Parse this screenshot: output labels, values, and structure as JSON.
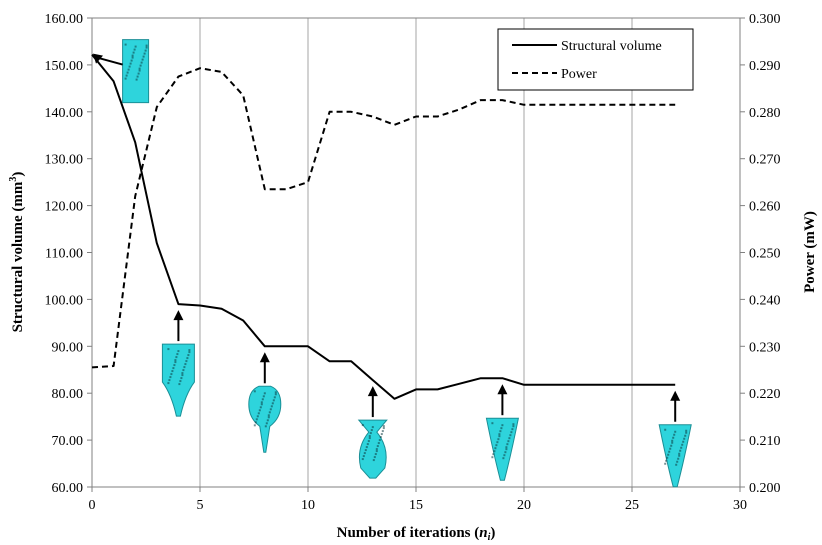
{
  "chart_data": {
    "type": "line",
    "x": [
      0,
      1,
      2,
      3,
      4,
      5,
      6,
      7,
      8,
      9,
      10,
      11,
      12,
      13,
      14,
      15,
      16,
      17,
      18,
      19,
      20,
      21,
      22,
      23,
      24,
      25,
      26,
      27
    ],
    "series": [
      {
        "name": "Structural volume",
        "axis": "left",
        "style": "solid",
        "values": [
          152.2,
          146.5,
          133.5,
          112.0,
          99.0,
          98.7,
          98.0,
          95.5,
          90.0,
          90.0,
          90.0,
          86.8,
          86.8,
          82.8,
          78.8,
          80.8,
          80.8,
          82.0,
          83.2,
          83.2,
          81.8,
          81.8,
          81.8,
          81.8,
          81.8,
          81.8,
          81.8,
          81.8
        ]
      },
      {
        "name": "Power",
        "axis": "right",
        "style": "dashed",
        "values": [
          0.2255,
          0.2258,
          0.262,
          0.281,
          0.2875,
          0.2893,
          0.2885,
          0.2835,
          0.2635,
          0.2635,
          0.265,
          0.28,
          0.28,
          0.279,
          0.2772,
          0.279,
          0.279,
          0.2805,
          0.2825,
          0.2825,
          0.2815,
          0.2815,
          0.2815,
          0.2815,
          0.2815,
          0.2815,
          0.2815,
          0.2815
        ]
      }
    ],
    "xlabel_main": "Number of iterations (",
    "xlabel_var": "n",
    "xlabel_sub": "i",
    "xlabel_close": ")",
    "ylabel_left": "Structural volume (mm",
    "ylabel_left_sup": "3",
    "ylabel_left_close": ")",
    "ylabel_right": "Power (mW)",
    "xlim": [
      0,
      30
    ],
    "ylim_left": [
      60,
      160
    ],
    "ylim_right": [
      0.2,
      0.3
    ],
    "xticks": [
      "0",
      "5",
      "10",
      "15",
      "20",
      "25",
      "30"
    ],
    "yticks_left": [
      "60.00",
      "70.00",
      "80.00",
      "90.00",
      "100.00",
      "110.00",
      "120.00",
      "130.00",
      "140.00",
      "150.00",
      "160.00"
    ],
    "yticks_right": [
      "0.200",
      "0.210",
      "0.220",
      "0.230",
      "0.240",
      "0.250",
      "0.260",
      "0.270",
      "0.280",
      "0.290",
      "0.300"
    ],
    "grid": "vertical",
    "legend_position": "top-right",
    "annotations": [
      {
        "x": 0,
        "shape": "block"
      },
      {
        "x": 4,
        "shape": "funnel"
      },
      {
        "x": 8,
        "shape": "bulb"
      },
      {
        "x": 13,
        "shape": "vase"
      },
      {
        "x": 19,
        "shape": "cone"
      },
      {
        "x": 27,
        "shape": "cone"
      }
    ],
    "annotation_color": "#2ed4dc"
  }
}
